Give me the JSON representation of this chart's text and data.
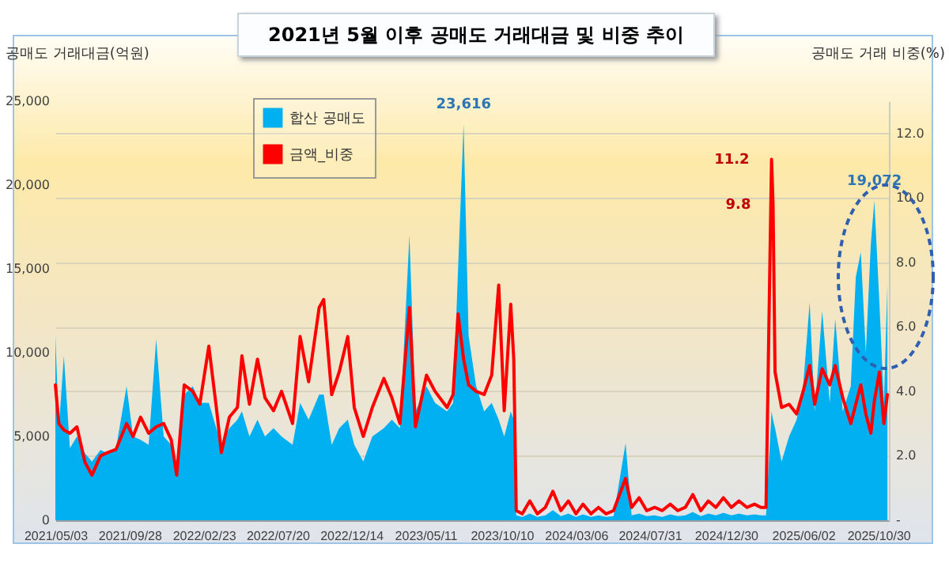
{
  "chart_data": {
    "type": "area",
    "title": "2021년 5월 이후 공매도 거래대금 및 비중 추이",
    "ylabel": "공매도 거래대금(억원)",
    "y2label": "공매도 거래 비중(%)",
    "x": [
      "2021-05-03",
      "2021-05-10",
      "2021-05-20",
      "2021-06-01",
      "2021-06-15",
      "2021-07-01",
      "2021-07-15",
      "2021-08-01",
      "2021-08-15",
      "2021-09-01",
      "2021-09-22",
      "2021-10-05",
      "2021-10-20",
      "2021-11-05",
      "2021-11-20",
      "2021-12-05",
      "2021-12-20",
      "2021-12-31",
      "2022-01-15",
      "2022-02-01",
      "2022-02-15",
      "2022-03-05",
      "2022-03-20",
      "2022-03-30",
      "2022-04-15",
      "2022-05-01",
      "2022-05-10",
      "2022-05-25",
      "2022-06-10",
      "2022-06-25",
      "2022-07-12",
      "2022-07-28",
      "2022-08-19",
      "2022-09-03",
      "2022-09-20",
      "2022-10-11",
      "2022-10-20",
      "2022-11-05",
      "2022-11-20",
      "2022-12-07",
      "2022-12-20",
      "2023-01-07",
      "2023-01-25",
      "2023-02-17",
      "2023-03-05",
      "2023-03-21",
      "2023-04-09",
      "2023-04-21",
      "2023-05-13",
      "2023-05-30",
      "2023-06-23",
      "2023-07-05",
      "2023-07-15",
      "2023-07-26",
      "2023-08-05",
      "2023-08-20",
      "2023-09-05",
      "2023-09-20",
      "2023-10-04",
      "2023-10-15",
      "2023-10-28",
      "2023-11-03",
      "2023-11-08",
      "2023-11-20",
      "2023-12-05",
      "2023-12-20",
      "2024-01-05",
      "2024-01-20",
      "2024-02-05",
      "2024-02-20",
      "2024-03-06",
      "2024-03-20",
      "2024-04-05",
      "2024-04-20",
      "2024-05-05",
      "2024-05-20",
      "2024-06-13",
      "2024-06-25",
      "2024-07-10",
      "2024-07-25",
      "2024-08-10",
      "2024-08-25",
      "2024-09-10",
      "2024-09-25",
      "2024-10-10",
      "2024-10-25",
      "2024-11-10",
      "2024-11-25",
      "2024-12-10",
      "2024-12-25",
      "2025-01-10",
      "2025-01-25",
      "2025-02-10",
      "2025-02-25",
      "2025-03-10",
      "2025-03-20",
      "2025-03-31",
      "2025-04-03",
      "2025-04-07",
      "2025-04-20",
      "2025-05-05",
      "2025-05-20",
      "2025-06-02",
      "2025-06-15",
      "2025-06-25",
      "2025-07-10",
      "2025-07-25",
      "2025-08-05",
      "2025-08-20",
      "2025-09-05",
      "2025-09-15",
      "2025-09-25",
      "2025-10-05",
      "2025-10-15",
      "2025-10-22",
      "2025-11-01",
      "2025-11-10",
      "2025-11-17"
    ],
    "series": [
      {
        "name": "합산 공매도",
        "type": "area",
        "color": "#00b0f0",
        "values": [
          11000,
          5500,
          9800,
          4300,
          5000,
          4000,
          3500,
          4200,
          4000,
          4300,
          8000,
          5000,
          4800,
          4500,
          10800,
          5000,
          4500,
          3000,
          7500,
          8000,
          7000,
          7000,
          5500,
          4500,
          5500,
          6000,
          6500,
          5000,
          6000,
          5000,
          5500,
          5000,
          4500,
          7000,
          6000,
          7500,
          7500,
          4500,
          5500,
          6000,
          4500,
          3500,
          5000,
          5500,
          6000,
          5500,
          17000,
          6500,
          8000,
          7000,
          6500,
          7000,
          15000,
          23616,
          11000,
          8000,
          6500,
          7000,
          6000,
          5000,
          6500,
          6000,
          300,
          200,
          400,
          200,
          300,
          600,
          250,
          400,
          200,
          350,
          200,
          300,
          200,
          250,
          4600,
          300,
          400,
          250,
          300,
          200,
          350,
          250,
          300,
          500,
          250,
          400,
          300,
          450,
          300,
          400,
          300,
          350,
          300,
          300,
          6500,
          6000,
          5500,
          3500,
          5000,
          6000,
          8000,
          13000,
          6500,
          12500,
          7000,
          12000,
          6500,
          8000,
          14500,
          16000,
          10000,
          16500,
          19072,
          13000,
          7000,
          14000
        ],
        "value_labels": [
          null,
          null,
          null,
          null,
          null,
          null,
          null,
          null,
          null,
          null,
          null,
          null,
          null,
          null,
          null,
          null,
          null,
          null,
          null,
          null,
          null,
          null,
          null,
          null,
          null,
          null,
          null,
          null,
          null,
          null,
          null,
          null,
          null,
          null,
          null,
          null,
          null,
          null,
          null,
          null,
          null,
          null,
          null,
          null,
          null,
          null,
          null,
          null,
          null,
          null,
          null,
          null,
          null,
          "23,616",
          null,
          null,
          null,
          null,
          null,
          null,
          null,
          null,
          null,
          null,
          null,
          null,
          null,
          null,
          null,
          null,
          null,
          null,
          null,
          null,
          null,
          null,
          null,
          null,
          null,
          null,
          null,
          null,
          null,
          null,
          null,
          null,
          null,
          null,
          null,
          null,
          null,
          null,
          null,
          null,
          null,
          null,
          null,
          null,
          null,
          null,
          null,
          null,
          null,
          null,
          null,
          null,
          null,
          null,
          null,
          null,
          null,
          null,
          null,
          null,
          "19,072",
          null,
          null,
          null
        ]
      },
      {
        "name": "금액_비중",
        "type": "line",
        "axis": "y2",
        "color": "#ff0000",
        "values": [
          4.2,
          3.0,
          2.8,
          2.7,
          2.9,
          1.8,
          1.4,
          2.0,
          2.1,
          2.2,
          3.0,
          2.6,
          3.2,
          2.7,
          2.9,
          3.0,
          2.5,
          1.4,
          4.2,
          4.0,
          3.6,
          5.4,
          3.5,
          2.1,
          3.2,
          3.5,
          5.1,
          3.6,
          5.0,
          3.8,
          3.4,
          4.0,
          3.0,
          5.7,
          4.3,
          6.6,
          6.85,
          3.9,
          4.6,
          5.7,
          3.5,
          2.6,
          3.5,
          4.4,
          3.8,
          3.0,
          6.6,
          2.9,
          4.5,
          4.0,
          3.5,
          3.9,
          6.4,
          5.0,
          4.2,
          4.0,
          3.9,
          4.5,
          7.3,
          3.4,
          6.7,
          5.0,
          0.3,
          0.2,
          0.6,
          0.2,
          0.4,
          0.9,
          0.3,
          0.6,
          0.2,
          0.5,
          0.2,
          0.4,
          0.2,
          0.3,
          1.3,
          0.4,
          0.7,
          0.3,
          0.4,
          0.3,
          0.5,
          0.3,
          0.4,
          0.8,
          0.3,
          0.6,
          0.4,
          0.7,
          0.4,
          0.6,
          0.4,
          0.5,
          0.4,
          0.4,
          11.2,
          9.8,
          4.6,
          3.5,
          3.6,
          3.3,
          4.0,
          4.8,
          3.6,
          4.7,
          4.2,
          4.8,
          3.8,
          3.0,
          3.6,
          4.2,
          3.3,
          2.7,
          3.7,
          4.6,
          3.0,
          3.9
        ],
        "value_labels": [
          null,
          null,
          null,
          null,
          null,
          null,
          null,
          null,
          null,
          null,
          null,
          null,
          null,
          null,
          null,
          null,
          null,
          null,
          null,
          null,
          null,
          null,
          null,
          null,
          null,
          null,
          null,
          null,
          null,
          null,
          null,
          null,
          null,
          null,
          null,
          null,
          null,
          null,
          null,
          null,
          null,
          null,
          null,
          null,
          null,
          null,
          null,
          null,
          null,
          null,
          null,
          null,
          null,
          null,
          null,
          null,
          null,
          null,
          null,
          null,
          null,
          null,
          null,
          null,
          null,
          null,
          null,
          null,
          null,
          null,
          null,
          null,
          null,
          null,
          null,
          null,
          null,
          null,
          null,
          null,
          null,
          null,
          null,
          null,
          null,
          null,
          null,
          null,
          null,
          null,
          null,
          null,
          null,
          null,
          null,
          null,
          "11.2",
          "9.8",
          null,
          null,
          null,
          null,
          null,
          null,
          null,
          null,
          null,
          null,
          null,
          null,
          null,
          null,
          null,
          null,
          null,
          null,
          null,
          null
        ]
      }
    ],
    "xlim": [
      "2021-05-03",
      "2025-11-20"
    ],
    "xticks": [
      {
        "value": "2021-05-03",
        "label": "2021/05/03"
      },
      {
        "value": "2021-09-28",
        "label": "2021/09/28"
      },
      {
        "value": "2022-02-23",
        "label": "2022/02/23"
      },
      {
        "value": "2022-07-20",
        "label": "2022/07/20"
      },
      {
        "value": "2022-12-14",
        "label": "2022/12/14"
      },
      {
        "value": "2023-05-11",
        "label": "2023/05/11"
      },
      {
        "value": "2023-10-10",
        "label": "2023/10/10"
      },
      {
        "value": "2024-03-06",
        "label": "2024/03/06"
      },
      {
        "value": "2024-07-31",
        "label": "2024/07/31"
      },
      {
        "value": "2024-12-30",
        "label": "2024/12/30"
      },
      {
        "value": "2025-06-02",
        "label": "2025/06/02"
      },
      {
        "value": "2025-10-30",
        "label": "2025/10/30"
      }
    ],
    "ylim": [
      0,
      25000
    ],
    "yticks": [
      {
        "value": 0,
        "label": "0"
      },
      {
        "value": 5000,
        "label": "5,000"
      },
      {
        "value": 10000,
        "label": "10,000"
      },
      {
        "value": 15000,
        "label": "15,000"
      },
      {
        "value": 20000,
        "label": "20,000"
      },
      {
        "value": 25000,
        "label": "25,000"
      }
    ],
    "y2lim": [
      0,
      13
    ],
    "y2ticks": [
      {
        "value": 0,
        "label": "-"
      },
      {
        "value": 2,
        "label": "2.0"
      },
      {
        "value": 4,
        "label": "4.0"
      },
      {
        "value": 6,
        "label": "6.0"
      },
      {
        "value": 8,
        "label": "8.0"
      },
      {
        "value": 10,
        "label": "10.0"
      },
      {
        "value": 12,
        "label": "12.0"
      }
    ],
    "grid": "y",
    "legend": "top left"
  }
}
